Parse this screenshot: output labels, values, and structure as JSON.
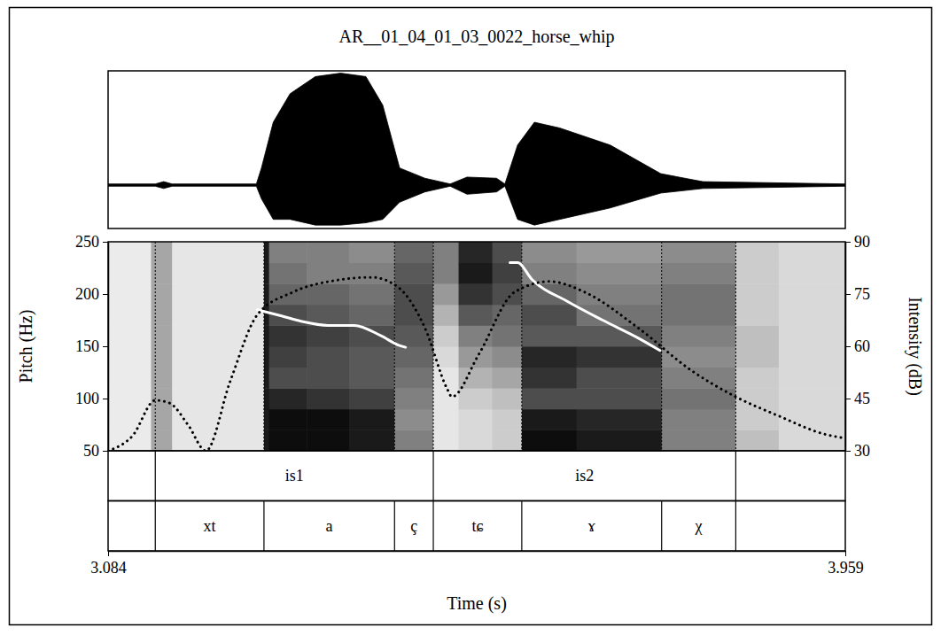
{
  "chart_data": {
    "type": "line",
    "title": "AR__01_04_01_03_0022_horse_whip",
    "x_label": "Time (s)",
    "y_label": "Pitch (Hz)",
    "y2_label": "Intensity (dB)",
    "xlim": [
      3.084,
      3.959
    ],
    "xticks": [
      3.084,
      3.959
    ],
    "ylim": [
      50,
      250
    ],
    "yticks": [
      50,
      100,
      150,
      200,
      250
    ],
    "y2lim": [
      30,
      90
    ],
    "y2ticks": [
      30,
      45,
      60,
      75,
      90
    ],
    "series": [
      {
        "color": "#ffffff",
        "line_style": "solid",
        "x": [
          3.261,
          3.29,
          3.313,
          3.345,
          3.376,
          3.408,
          3.429,
          3.437,
          3.5,
          3.561,
          3.57,
          3.587,
          3.629,
          3.671,
          3.713,
          3.739
        ],
        "values": [
          185,
          179,
          174,
          170,
          170,
          160,
          151,
          149,
          null,
          230,
          230,
          214,
          193,
          175,
          158,
          146
        ]
      },
      {
        "color": "#000000",
        "line_style": "dotted",
        "axis": "y2",
        "x": [
          3.084,
          3.113,
          3.14,
          3.157,
          3.179,
          3.2,
          3.229,
          3.261,
          3.303,
          3.356,
          3.397,
          3.429,
          3.46,
          3.487,
          3.492,
          3.524,
          3.566,
          3.608,
          3.65,
          3.713,
          3.776,
          3.829,
          3.881,
          3.934,
          3.959
        ],
        "values": [
          30,
          34.3,
          44.5,
          43.7,
          37.4,
          30,
          50,
          69,
          75.5,
          79,
          79.8,
          76.8,
          65.3,
          47.5,
          45.5,
          57.7,
          75.5,
          78.6,
          75.5,
          65.3,
          53.1,
          45.5,
          39.9,
          34.8,
          33.6
        ]
      }
    ],
    "waveform": {
      "ylim": [
        -0.38,
        1.0
      ],
      "color": "#000000",
      "x": [
        3.084,
        3.14,
        3.15,
        3.16,
        3.26,
        3.266,
        3.28,
        3.3,
        3.33,
        3.36,
        3.39,
        3.41,
        3.43,
        3.46,
        3.49,
        3.51,
        3.545,
        3.555,
        3.57,
        3.59,
        3.62,
        3.68,
        3.74,
        3.79,
        3.959
      ],
      "upper": [
        0.01,
        0.01,
        0.03,
        0.01,
        0.01,
        0.15,
        0.55,
        0.8,
        0.95,
        0.98,
        0.95,
        0.7,
        0.15,
        0.06,
        0.01,
        0.07,
        0.06,
        0.01,
        0.35,
        0.55,
        0.5,
        0.35,
        0.1,
        0.03,
        0.01
      ],
      "lower": [
        -0.01,
        -0.01,
        -0.03,
        -0.01,
        -0.01,
        -0.12,
        -0.3,
        -0.3,
        -0.35,
        -0.35,
        -0.33,
        -0.3,
        -0.15,
        -0.06,
        -0.01,
        -0.08,
        -0.06,
        -0.01,
        -0.3,
        -0.35,
        -0.3,
        -0.2,
        -0.07,
        -0.03,
        -0.01
      ]
    },
    "spectrogram": {
      "clim": [
        0,
        1
      ],
      "x": [
        3.084,
        3.135,
        3.16,
        3.269,
        3.275,
        3.32,
        3.37,
        3.424,
        3.47,
        3.5,
        3.54,
        3.575,
        3.64,
        3.741,
        3.829,
        3.88,
        3.959
      ],
      "y": [
        50,
        70,
        90,
        110,
        130,
        150,
        170,
        190,
        210,
        230,
        250
      ],
      "cells": [
        [
          0.08,
          0.08,
          0.08,
          0.08,
          0.08,
          0.08,
          0.08,
          0.08,
          0.08,
          0.08
        ],
        [
          0.35,
          0.35,
          0.35,
          0.35,
          0.35,
          0.35,
          0.35,
          0.35,
          0.35,
          0.35
        ],
        [
          0.1,
          0.1,
          0.1,
          0.1,
          0.1,
          0.1,
          0.1,
          0.1,
          0.1,
          0.1
        ],
        [
          0.9,
          0.9,
          0.9,
          0.9,
          0.9,
          0.9,
          0.9,
          0.9,
          0.9,
          0.9
        ],
        [
          0.95,
          0.95,
          0.85,
          0.7,
          0.75,
          0.8,
          0.7,
          0.6,
          0.55,
          0.5
        ],
        [
          0.95,
          0.95,
          0.8,
          0.7,
          0.7,
          0.75,
          0.65,
          0.6,
          0.5,
          0.5
        ],
        [
          0.9,
          0.9,
          0.75,
          0.65,
          0.65,
          0.7,
          0.6,
          0.55,
          0.5,
          0.45
        ],
        [
          0.5,
          0.45,
          0.5,
          0.55,
          0.6,
          0.65,
          0.7,
          0.7,
          0.65,
          0.6
        ],
        [
          0.1,
          0.1,
          0.1,
          0.1,
          0.15,
          0.2,
          0.3,
          0.4,
          0.5,
          0.5
        ],
        [
          0.15,
          0.15,
          0.2,
          0.3,
          0.4,
          0.5,
          0.65,
          0.8,
          0.9,
          0.85
        ],
        [
          0.2,
          0.2,
          0.25,
          0.35,
          0.45,
          0.55,
          0.6,
          0.7,
          0.75,
          0.7
        ],
        [
          0.95,
          0.9,
          0.7,
          0.8,
          0.85,
          0.65,
          0.7,
          0.6,
          0.5,
          0.45
        ],
        [
          0.9,
          0.85,
          0.7,
          0.7,
          0.8,
          0.65,
          0.55,
          0.5,
          0.45,
          0.4
        ],
        [
          0.5,
          0.5,
          0.55,
          0.5,
          0.45,
          0.5,
          0.55,
          0.55,
          0.5,
          0.45
        ],
        [
          0.25,
          0.2,
          0.2,
          0.2,
          0.25,
          0.25,
          0.2,
          0.2,
          0.2,
          0.2
        ],
        [
          0.15,
          0.15,
          0.15,
          0.15,
          0.15,
          0.15,
          0.15,
          0.15,
          0.15,
          0.15
        ]
      ]
    },
    "tiers": [
      {
        "intervals": [
          {
            "label": "is1",
            "start": 3.14,
            "end": 3.47
          },
          {
            "label": "is2",
            "start": 3.47,
            "end": 3.829
          }
        ]
      },
      {
        "intervals": [
          {
            "label": "xt",
            "start": 3.14,
            "end": 3.269
          },
          {
            "label": "a",
            "start": 3.269,
            "end": 3.424
          },
          {
            "label": "ç",
            "start": 3.424,
            "end": 3.47
          },
          {
            "label": "tɕ",
            "start": 3.47,
            "end": 3.575
          },
          {
            "label": "ɤ",
            "start": 3.575,
            "end": 3.741
          },
          {
            "label": "χ",
            "start": 3.741,
            "end": 3.829
          }
        ]
      }
    ]
  }
}
